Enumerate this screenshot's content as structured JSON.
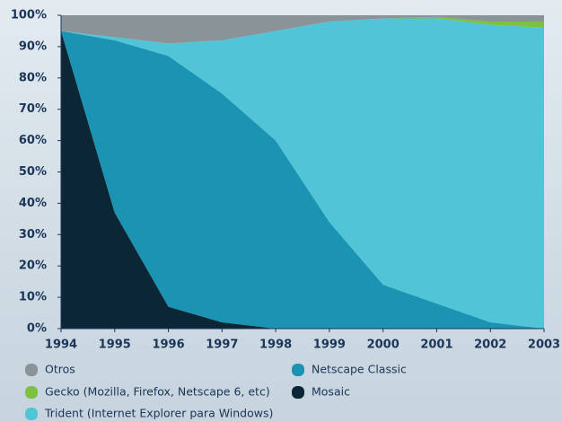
{
  "chart_data": {
    "type": "stacked_area",
    "x": [
      1994,
      1995,
      1996,
      1997,
      1998,
      1999,
      2000,
      2001,
      2002,
      2003
    ],
    "series": [
      {
        "name": "Mosaic",
        "color": "#0b2635",
        "values": [
          95,
          37,
          7,
          2,
          0,
          0,
          0,
          0,
          0,
          0
        ]
      },
      {
        "name": "Netscape Classic",
        "color": "#1b93b2",
        "values": [
          0,
          55,
          80,
          73,
          60,
          34,
          14,
          8,
          2,
          0
        ]
      },
      {
        "name": "Trident (Internet Explorer para Windows)",
        "color": "#52c4d8",
        "values": [
          0,
          1,
          4,
          17,
          35,
          64,
          85,
          91,
          95,
          96
        ]
      },
      {
        "name": "Gecko (Mozilla, Firefox, Netscape 6, etc)",
        "color": "#7cc142",
        "values": [
          0,
          0,
          0,
          0,
          0,
          0,
          0,
          0.5,
          1,
          2
        ]
      },
      {
        "name": "Otros",
        "color": "#8a9398",
        "values": [
          5,
          7,
          9,
          8,
          5,
          2,
          1,
          0.5,
          2,
          2
        ]
      }
    ],
    "xlim": [
      1994,
      2003
    ],
    "xticks": [
      1994,
      1995,
      1996,
      1997,
      1998,
      1999,
      2000,
      2001,
      2002,
      2003
    ],
    "ylim": [
      0,
      100
    ],
    "yticks": [
      {
        "value": 0,
        "label": "0%"
      },
      {
        "value": 10,
        "label": "10%"
      },
      {
        "value": 20,
        "label": "20%"
      },
      {
        "value": 30,
        "label": "30%"
      },
      {
        "value": 40,
        "label": "40%"
      },
      {
        "value": 50,
        "label": "50%"
      },
      {
        "value": 60,
        "label": "60%"
      },
      {
        "value": 70,
        "label": "70%"
      },
      {
        "value": 80,
        "label": "80%"
      },
      {
        "value": 90,
        "label": "90%"
      },
      {
        "value": 100,
        "label": "100%"
      }
    ],
    "stacked": true
  }
}
